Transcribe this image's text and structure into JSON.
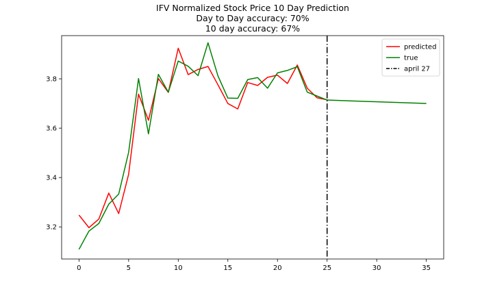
{
  "chart_data": {
    "type": "line",
    "title_lines": [
      "IFV Normalized Stock Price 10 Day Prediction",
      "Day to Day accuracy: 70%",
      "10 day accuracy: 67%"
    ],
    "xlabel": "",
    "ylabel": "",
    "xlim": [
      -1.75,
      36.75
    ],
    "ylim": [
      3.07,
      3.975
    ],
    "xticks": [
      0,
      5,
      10,
      15,
      20,
      25,
      30,
      35
    ],
    "yticks": [
      3.2,
      3.4,
      3.6,
      3.8
    ],
    "grid": false,
    "legend_position": "top-right",
    "series": [
      {
        "name": "predicted",
        "color": "#ff0000",
        "x": [
          0,
          1,
          2,
          3,
          4,
          5,
          6,
          7,
          8,
          9,
          10,
          11,
          12,
          13,
          14,
          15,
          16,
          17,
          18,
          19,
          20,
          21,
          22,
          23,
          24,
          25
        ],
        "y": [
          3.248,
          3.197,
          3.232,
          3.337,
          3.254,
          3.413,
          3.738,
          3.632,
          3.801,
          3.745,
          3.924,
          3.817,
          3.838,
          3.85,
          3.776,
          3.7,
          3.678,
          3.785,
          3.773,
          3.806,
          3.815,
          3.781,
          3.856,
          3.762,
          3.723,
          3.715
        ]
      },
      {
        "name": "true",
        "color": "#008000",
        "x": [
          0,
          1,
          2,
          3,
          4,
          5,
          6,
          7,
          8,
          9,
          10,
          11,
          12,
          13,
          14,
          15,
          16,
          17,
          18,
          19,
          20,
          21,
          22,
          23,
          24,
          25,
          35
        ],
        "y": [
          3.109,
          3.183,
          3.214,
          3.292,
          3.333,
          3.502,
          3.801,
          3.577,
          3.818,
          3.746,
          3.872,
          3.851,
          3.813,
          3.946,
          3.812,
          3.722,
          3.721,
          3.797,
          3.805,
          3.762,
          3.824,
          3.834,
          3.849,
          3.746,
          3.73,
          3.714,
          3.7
        ]
      }
    ],
    "vline": {
      "name": "april 27",
      "x": 25,
      "color": "#000000",
      "style": "dashdot"
    }
  }
}
